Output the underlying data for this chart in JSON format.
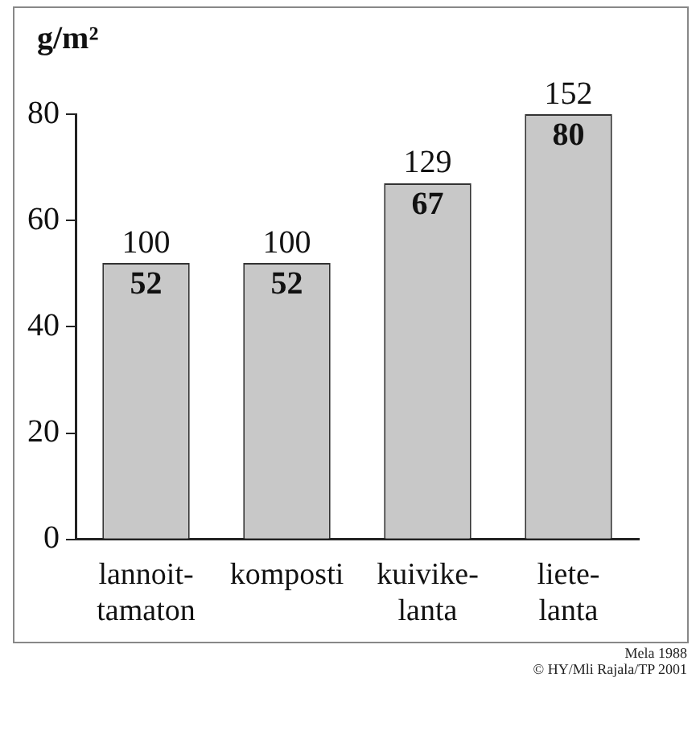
{
  "chart_data": {
    "type": "bar",
    "ylabel": "g/m²",
    "categories": [
      "lannoit-tamaton",
      "komposti",
      "kuivike-lanta",
      "liete-lanta"
    ],
    "values": [
      52,
      52,
      67,
      80
    ],
    "color": "#c8c8c8",
    "data_labels": true,
    "ylim": [
      0,
      80
    ],
    "yticks": [
      0,
      20,
      40,
      60,
      80
    ],
    "grid": false,
    "legend": false,
    "annotations": [
      {
        "text": "100",
        "x": "lannoit-tamaton",
        "y": 52
      },
      {
        "text": "100",
        "x": "komposti",
        "y": 52
      },
      {
        "text": "129",
        "x": "kuivike-lanta",
        "y": 67
      },
      {
        "text": "152",
        "x": "liete-lanta",
        "y": 80
      },
      "Mela 1988",
      "© HY/Mli Rajala/TP 2001"
    ]
  }
}
